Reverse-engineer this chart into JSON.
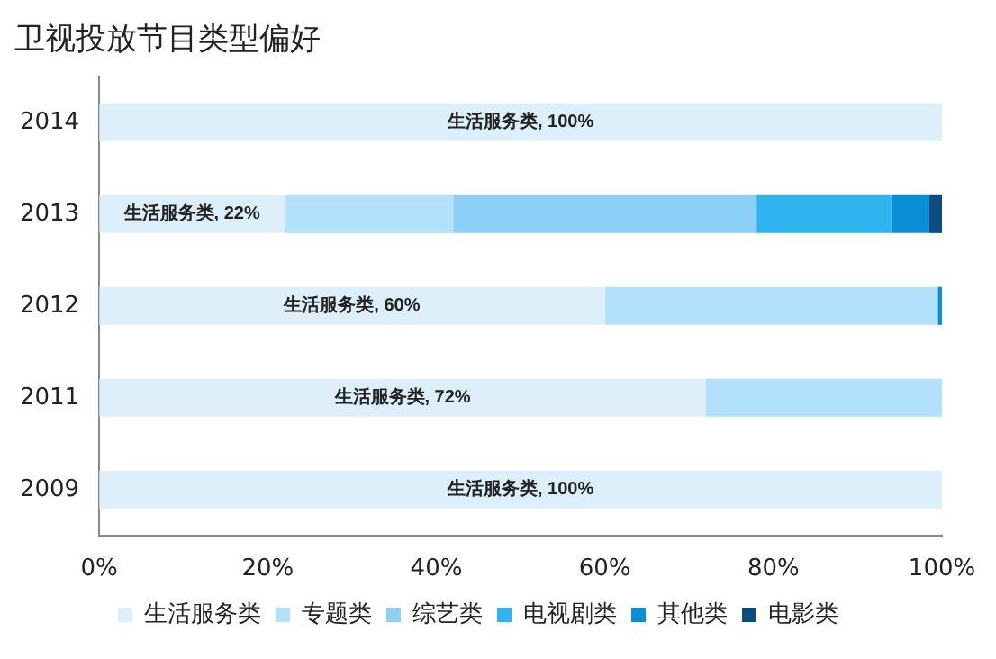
{
  "chart_data": {
    "type": "bar",
    "orientation": "horizontal",
    "stacked": true,
    "title": "卫视投放节目类型偏好",
    "categories": [
      "2014",
      "2013",
      "2012",
      "2011",
      "2009"
    ],
    "series": [
      {
        "name": "生活服务类",
        "color": "#ddeffa",
        "values": [
          100,
          22,
          60,
          72,
          100
        ],
        "value_labels": [
          "生活服务类, 100%",
          "生活服务类, 22%",
          "生活服务类, 60%",
          "生活服务类, 72%",
          "生活服务类, 100%"
        ]
      },
      {
        "name": "专题类",
        "color": "#b3e0fb",
        "values": [
          0,
          20,
          39.5,
          28,
          0
        ]
      },
      {
        "name": "综艺类",
        "color": "#8dd0f8",
        "values": [
          0,
          36,
          0,
          0,
          0
        ]
      },
      {
        "name": "电视剧类",
        "color": "#2fb4f0",
        "values": [
          0,
          16,
          0,
          0,
          0
        ]
      },
      {
        "name": "其他类",
        "color": "#0a8fd6",
        "values": [
          0,
          4.5,
          0.5,
          0,
          0
        ]
      },
      {
        "name": "电影类",
        "color": "#0b4d7e",
        "values": [
          0,
          1.5,
          0,
          0,
          0
        ]
      }
    ],
    "xlim": [
      0,
      100
    ],
    "xticks": [
      {
        "value": 0,
        "label": "0%"
      },
      {
        "value": 20,
        "label": "20%"
      },
      {
        "value": 40,
        "label": "40%"
      },
      {
        "value": 60,
        "label": "60%"
      },
      {
        "value": 80,
        "label": "80%"
      },
      {
        "value": 100,
        "label": "100%"
      }
    ],
    "grid": false,
    "legend": "bottom"
  }
}
